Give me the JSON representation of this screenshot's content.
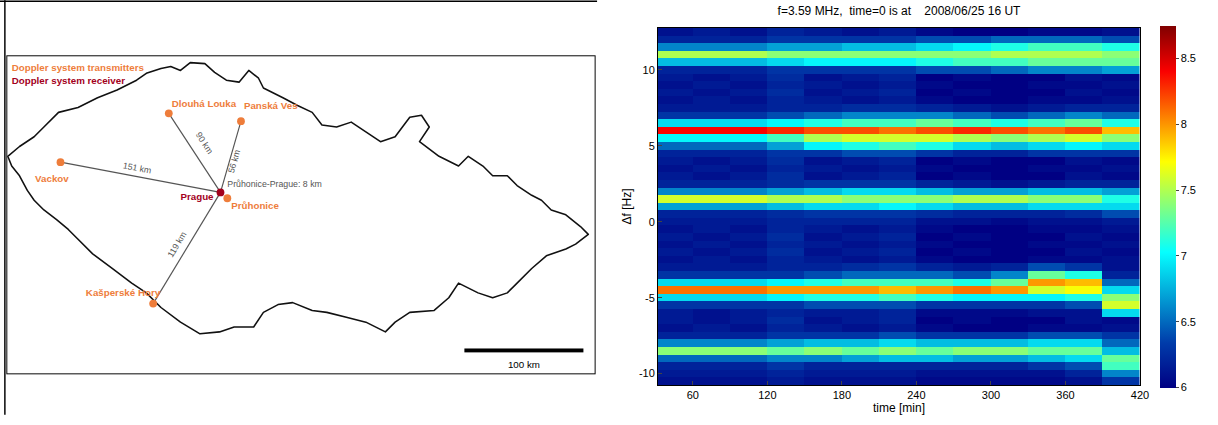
{
  "map": {
    "key": {
      "transmitters": "Doppler system transmitters",
      "receiver": "Doppler system receiver"
    },
    "receiver": {
      "label": "Prague"
    },
    "transmitters": [
      {
        "label": "Dlouhá Louka",
        "distance": "90 km"
      },
      {
        "label": "Panská Ves",
        "distance": "56 km"
      },
      {
        "label": "Vackov",
        "distance": "151 km"
      },
      {
        "label": "Kašperské Hory",
        "distance": "119 km"
      },
      {
        "label": "Průhonice",
        "note": "Průhonice-Prague: 8 km"
      }
    ],
    "scale_bar": "100 km"
  },
  "chart_data": {
    "type": "heatmap",
    "title": "f=3.59 MHz,  time=0 is at    2008/06/25 16 UT",
    "x_label": "time [min]",
    "y_label": "Δf [Hz]",
    "color": "jet",
    "grid": false,
    "x": [
      45,
      75,
      105,
      135,
      165,
      195,
      225,
      255,
      285,
      315,
      345,
      375,
      405
    ],
    "y": [
      -10.5,
      -10,
      -9.5,
      -9,
      -8.5,
      -8,
      -7.5,
      -7,
      -6.5,
      -6,
      -5.5,
      -5,
      -4.5,
      -4,
      -3.5,
      -3,
      -2.5,
      -2,
      -1.5,
      -1,
      -0.5,
      0,
      0.5,
      1,
      1.5,
      2,
      2.5,
      3,
      3.5,
      4,
      4.5,
      5,
      5.5,
      6,
      6.5,
      7,
      7.5,
      8,
      8.5,
      9,
      9.5,
      10,
      10.5,
      11,
      11.5,
      12,
      12.5
    ],
    "z": [
      [
        6.1,
        6.1,
        6.1,
        6.15,
        6.1,
        6.1,
        6.1,
        6.05,
        6.05,
        6.05,
        6.05,
        6.1,
        6.3
      ],
      [
        6.15,
        6.15,
        6.15,
        6.2,
        6.15,
        6.15,
        6.15,
        6.1,
        6.1,
        6.1,
        6.1,
        6.2,
        6.6
      ],
      [
        6.2,
        6.2,
        6.2,
        6.3,
        6.2,
        6.2,
        6.2,
        6.2,
        6.2,
        6.2,
        6.3,
        6.4,
        7.2
      ],
      [
        6.5,
        6.5,
        6.5,
        6.6,
        6.6,
        6.7,
        6.8,
        6.8,
        6.7,
        6.7,
        6.8,
        6.9,
        7.3
      ],
      [
        7.4,
        7.4,
        7.4,
        7.3,
        7.4,
        7.3,
        7.4,
        7.3,
        7.4,
        7.4,
        7.3,
        7.3,
        6.8
      ],
      [
        6.6,
        6.6,
        6.6,
        6.7,
        6.8,
        6.8,
        6.9,
        6.8,
        6.8,
        6.8,
        6.9,
        6.9,
        6.5
      ],
      [
        6.2,
        6.2,
        6.2,
        6.3,
        6.3,
        6.3,
        6.4,
        6.3,
        6.3,
        6.3,
        6.4,
        6.4,
        6.3
      ],
      [
        6.1,
        6.15,
        6.1,
        6.2,
        6.15,
        6.1,
        6.15,
        6.05,
        6.0,
        6.0,
        6.05,
        6.05,
        6.1
      ],
      [
        6.15,
        6.1,
        6.15,
        6.25,
        6.1,
        6.15,
        6.2,
        6.0,
        6.05,
        6.0,
        6.0,
        6.1,
        6.05
      ],
      [
        6.15,
        6.1,
        6.15,
        6.2,
        6.15,
        6.15,
        6.2,
        6.05,
        6.05,
        6.05,
        6.1,
        6.1,
        6.9
      ],
      [
        6.3,
        6.3,
        6.3,
        6.3,
        6.4,
        6.4,
        6.4,
        6.3,
        6.3,
        6.3,
        6.3,
        6.4,
        7.6
      ],
      [
        6.9,
        6.9,
        6.9,
        7.0,
        7.1,
        7.1,
        7.2,
        7.1,
        7.0,
        7.0,
        7.0,
        7.1,
        7.4
      ],
      [
        8.1,
        8.1,
        8.1,
        8.0,
        8.0,
        8.0,
        7.9,
        8.0,
        8.1,
        8.0,
        7.6,
        7.7,
        6.9
      ],
      [
        6.9,
        6.9,
        6.9,
        7.0,
        7.1,
        7.2,
        7.2,
        7.2,
        7.1,
        7.3,
        8.0,
        7.9,
        6.5
      ],
      [
        6.3,
        6.3,
        6.3,
        6.3,
        6.4,
        6.5,
        6.5,
        6.5,
        6.4,
        6.6,
        7.3,
        7.1,
        6.2
      ],
      [
        6.15,
        6.15,
        6.15,
        6.2,
        6.2,
        6.25,
        6.3,
        6.2,
        6.15,
        6.2,
        6.4,
        6.3,
        6.1
      ],
      [
        6.1,
        6.15,
        6.1,
        6.2,
        6.15,
        6.1,
        6.15,
        6.05,
        6.0,
        6.0,
        6.05,
        6.05,
        6.1
      ],
      [
        6.15,
        6.1,
        6.15,
        6.25,
        6.1,
        6.15,
        6.2,
        6.0,
        6.05,
        6.0,
        6.0,
        6.1,
        6.05
      ],
      [
        6.1,
        6.15,
        6.1,
        6.2,
        6.15,
        6.1,
        6.15,
        6.05,
        6.0,
        6.0,
        6.05,
        6.05,
        6.1
      ],
      [
        6.15,
        6.1,
        6.15,
        6.25,
        6.1,
        6.15,
        6.2,
        6.0,
        6.05,
        6.0,
        6.0,
        6.1,
        6.05
      ],
      [
        6.1,
        6.15,
        6.1,
        6.2,
        6.15,
        6.1,
        6.15,
        6.05,
        6.0,
        6.0,
        6.05,
        6.05,
        6.1
      ],
      [
        6.15,
        6.15,
        6.15,
        6.2,
        6.2,
        6.2,
        6.2,
        6.1,
        6.1,
        6.05,
        6.1,
        6.1,
        6.15
      ],
      [
        6.2,
        6.2,
        6.2,
        6.25,
        6.3,
        6.3,
        6.3,
        6.25,
        6.2,
        6.2,
        6.2,
        6.25,
        6.4
      ],
      [
        6.7,
        6.7,
        6.7,
        6.8,
        6.9,
        6.9,
        7.0,
        6.9,
        6.8,
        6.8,
        6.9,
        6.9,
        6.9
      ],
      [
        7.6,
        7.6,
        7.6,
        7.5,
        7.5,
        7.4,
        7.4,
        7.4,
        7.5,
        7.5,
        7.4,
        7.4,
        7.1
      ],
      [
        6.6,
        6.6,
        6.6,
        6.7,
        6.8,
        6.9,
        6.9,
        6.8,
        6.7,
        6.7,
        6.8,
        6.8,
        6.7
      ],
      [
        6.2,
        6.2,
        6.2,
        6.25,
        6.3,
        6.3,
        6.3,
        6.2,
        6.15,
        6.1,
        6.15,
        6.2,
        6.2
      ],
      [
        6.15,
        6.1,
        6.15,
        6.25,
        6.1,
        6.15,
        6.2,
        6.0,
        6.05,
        6.0,
        6.0,
        6.1,
        6.05
      ],
      [
        6.1,
        6.15,
        6.1,
        6.2,
        6.15,
        6.1,
        6.15,
        6.05,
        6.0,
        6.0,
        6.05,
        6.05,
        6.1
      ],
      [
        6.15,
        6.1,
        6.15,
        6.25,
        6.1,
        6.15,
        6.2,
        6.0,
        6.05,
        6.0,
        6.0,
        6.1,
        6.05
      ],
      [
        6.2,
        6.2,
        6.2,
        6.3,
        6.3,
        6.4,
        6.4,
        6.3,
        6.2,
        6.2,
        6.3,
        6.3,
        6.3
      ],
      [
        6.5,
        6.5,
        6.5,
        6.7,
        7.0,
        7.1,
        7.2,
        7.1,
        6.9,
        6.8,
        6.9,
        7.0,
        6.9
      ],
      [
        7.0,
        7.0,
        7.0,
        7.2,
        7.5,
        7.6,
        7.6,
        7.6,
        7.5,
        7.4,
        7.5,
        7.6,
        7.4
      ],
      [
        8.4,
        8.4,
        8.4,
        8.3,
        8.2,
        8.2,
        8.1,
        8.2,
        8.3,
        8.2,
        8.1,
        8.2,
        7.9
      ],
      [
        6.9,
        6.9,
        6.9,
        7.0,
        7.1,
        7.2,
        7.2,
        7.3,
        7.2,
        7.1,
        7.2,
        7.3,
        7.1
      ],
      [
        6.3,
        6.3,
        6.3,
        6.4,
        6.5,
        6.6,
        6.6,
        6.6,
        6.5,
        6.4,
        6.5,
        6.6,
        6.5
      ],
      [
        6.15,
        6.15,
        6.15,
        6.2,
        6.2,
        6.25,
        6.25,
        6.2,
        6.15,
        6.1,
        6.15,
        6.2,
        6.2
      ],
      [
        6.1,
        6.15,
        6.1,
        6.2,
        6.15,
        6.1,
        6.15,
        6.05,
        6.0,
        6.0,
        6.05,
        6.05,
        6.1
      ],
      [
        6.15,
        6.1,
        6.15,
        6.25,
        6.1,
        6.15,
        6.2,
        6.0,
        6.05,
        6.0,
        6.0,
        6.1,
        6.05
      ],
      [
        6.1,
        6.15,
        6.1,
        6.2,
        6.15,
        6.1,
        6.15,
        6.05,
        6.0,
        6.0,
        6.05,
        6.05,
        6.1
      ],
      [
        6.15,
        6.1,
        6.15,
        6.25,
        6.1,
        6.15,
        6.2,
        6.0,
        6.05,
        6.0,
        6.0,
        6.1,
        6.05
      ],
      [
        6.2,
        6.2,
        6.2,
        6.3,
        6.3,
        6.3,
        6.3,
        6.4,
        6.4,
        6.5,
        6.6,
        6.6,
        6.7
      ],
      [
        6.8,
        6.8,
        6.8,
        6.9,
        7.0,
        7.0,
        7.0,
        7.1,
        7.2,
        7.2,
        7.3,
        7.3,
        7.3
      ],
      [
        7.5,
        7.5,
        7.5,
        7.4,
        7.4,
        7.4,
        7.4,
        7.4,
        7.4,
        7.5,
        7.5,
        7.5,
        7.4
      ],
      [
        6.6,
        6.6,
        6.6,
        6.7,
        6.7,
        6.8,
        6.8,
        6.9,
        7.0,
        7.1,
        7.2,
        7.2,
        7.1
      ],
      [
        6.2,
        6.2,
        6.2,
        6.3,
        6.3,
        6.3,
        6.3,
        6.4,
        6.4,
        6.5,
        6.5,
        6.5,
        6.4
      ],
      [
        6.1,
        6.15,
        6.1,
        6.2,
        6.15,
        6.1,
        6.15,
        6.05,
        6.0,
        6.0,
        6.05,
        6.05,
        6.1
      ]
    ],
    "xlim": [
      32,
      420
    ],
    "xticks": [
      60,
      120,
      180,
      240,
      300,
      360,
      420
    ],
    "ylim": [
      -10.75,
      12.75
    ],
    "yticks": [
      -10,
      -5,
      0,
      5,
      10
    ],
    "colorbar": {
      "range": [
        6,
        8.75
      ],
      "ticks": [
        6,
        6.5,
        7,
        7.5,
        8,
        8.5
      ]
    }
  }
}
